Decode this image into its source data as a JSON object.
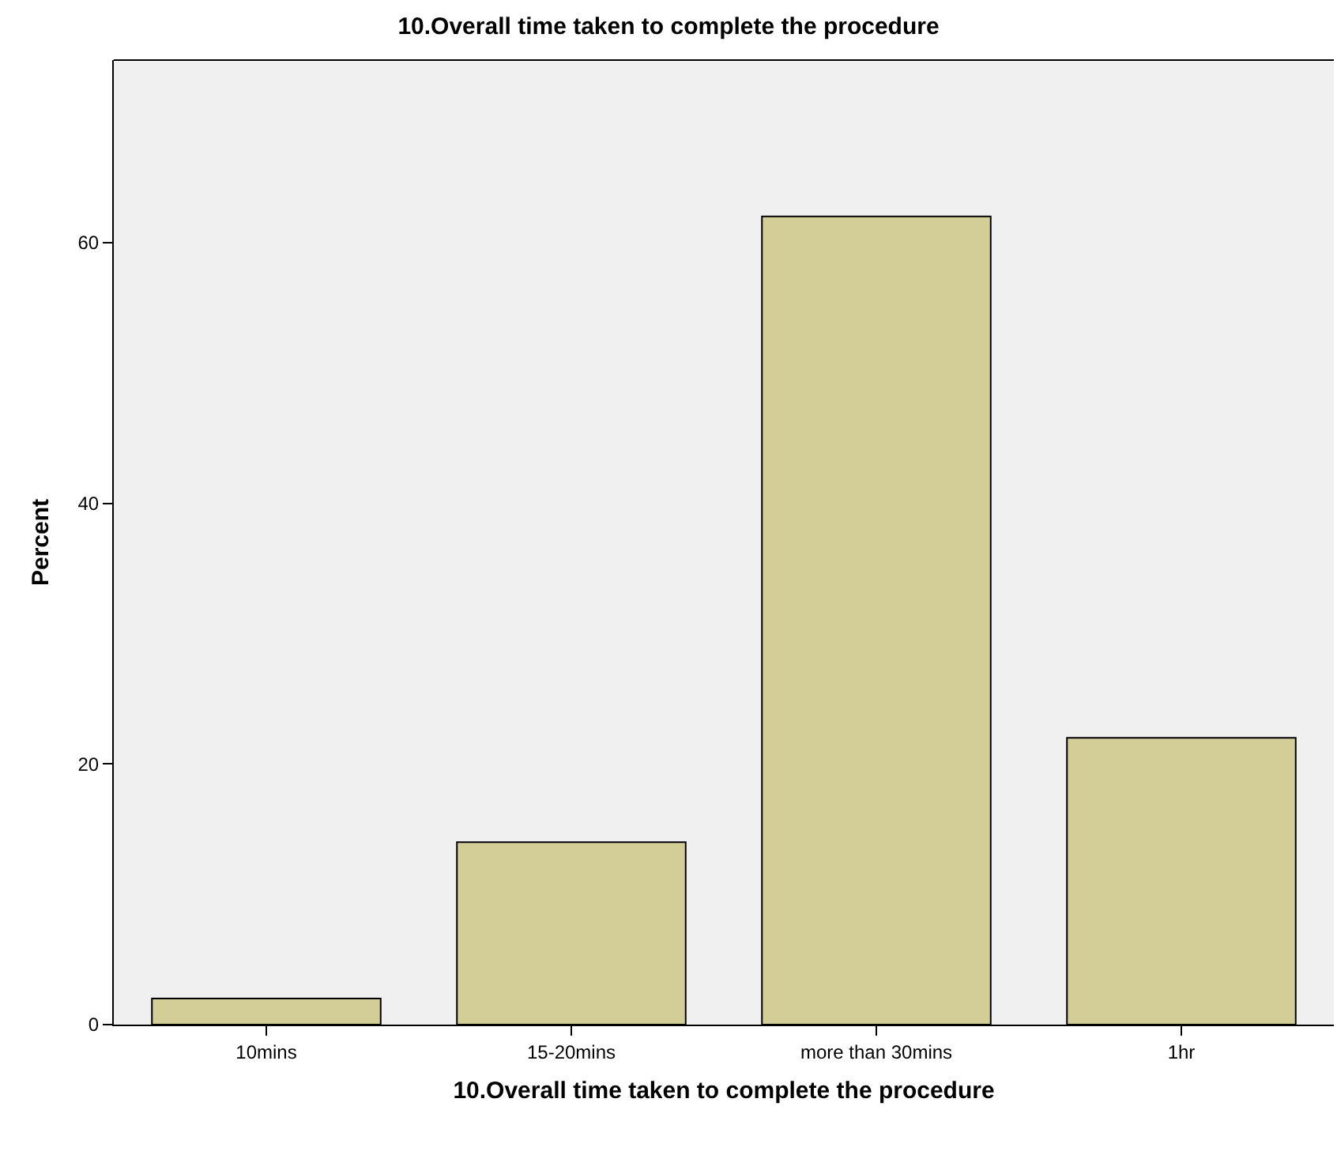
{
  "chart_data": {
    "type": "bar",
    "title": "10.Overall time taken to complete the procedure",
    "xlabel": "10.Overall time taken to complete the procedure",
    "ylabel": "Percent",
    "categories": [
      "10mins",
      "15-20mins",
      "more than 30mins",
      "1hr"
    ],
    "values": [
      2,
      14,
      62,
      22
    ],
    "color": "#d3ce97",
    "ylim": [
      0,
      74
    ],
    "yticks": [
      0,
      20,
      40,
      60
    ],
    "grid": false
  }
}
